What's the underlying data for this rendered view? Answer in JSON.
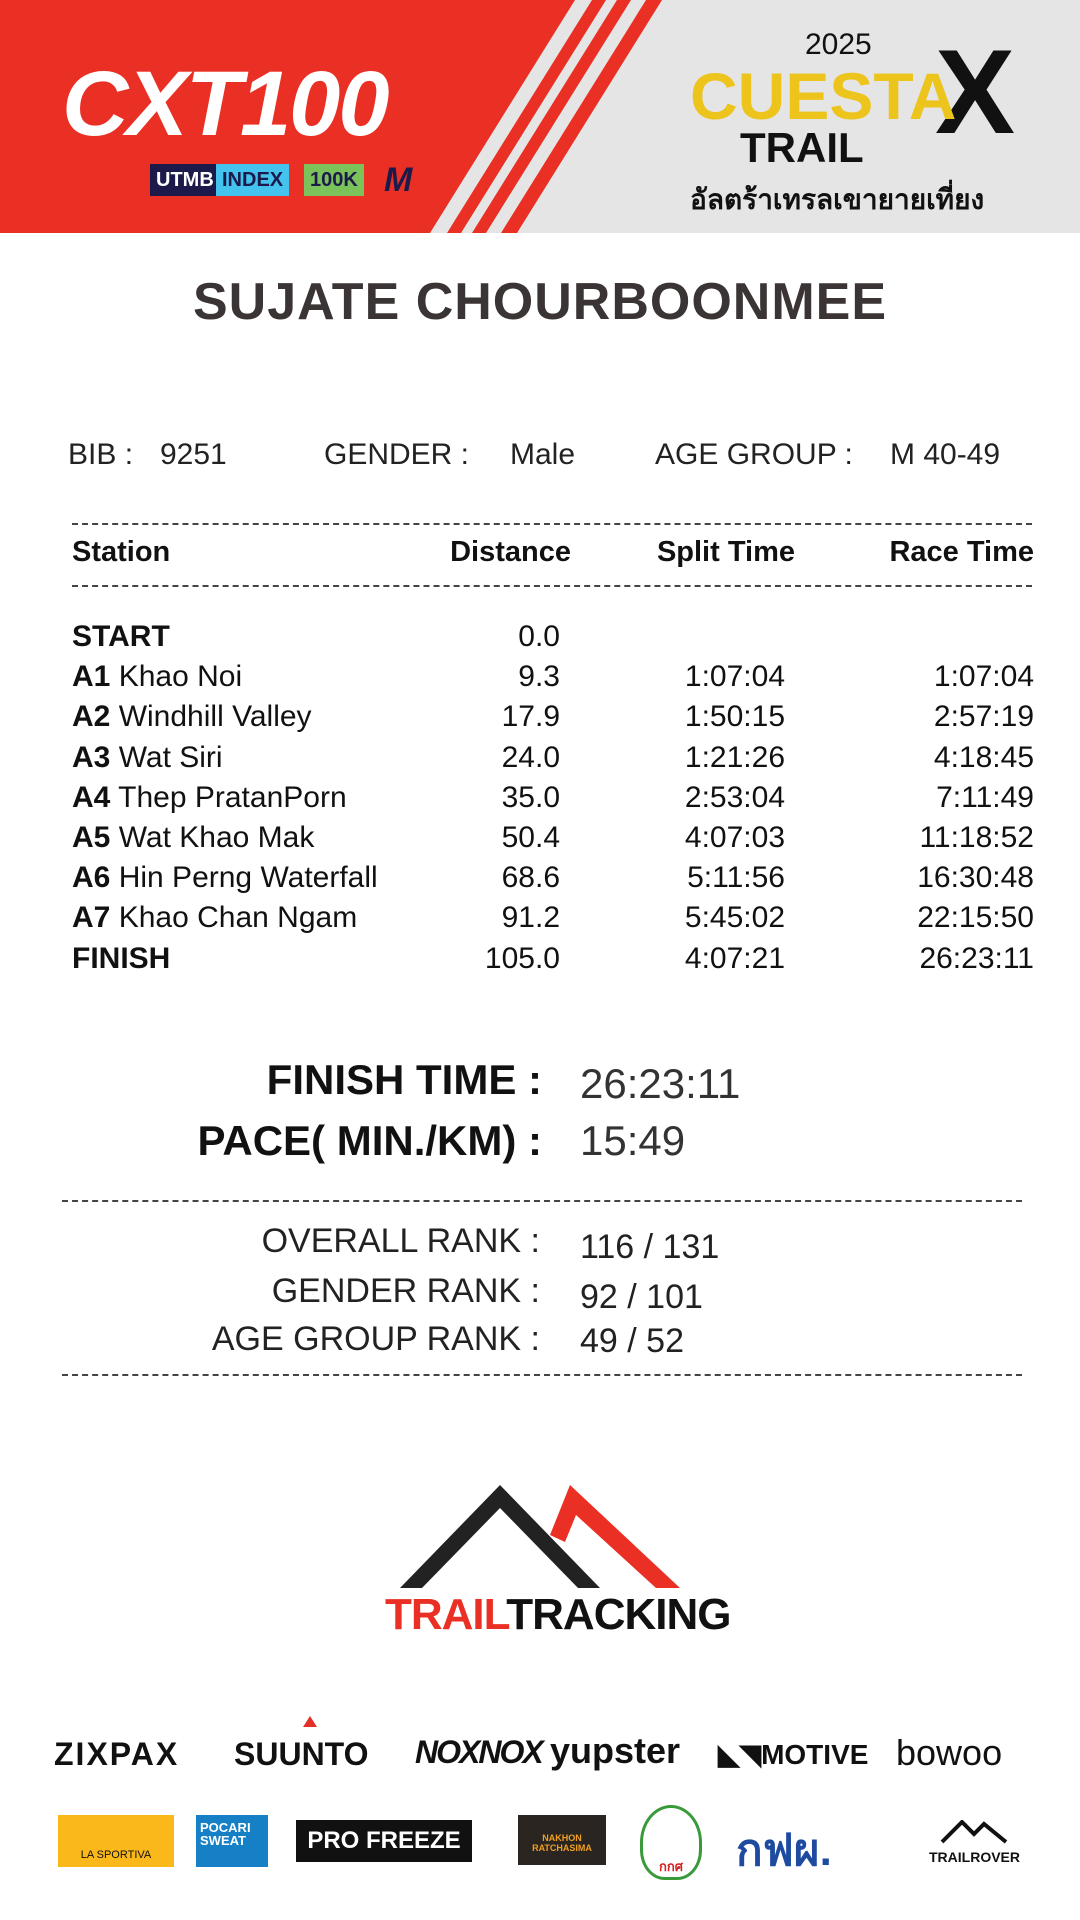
{
  "header": {
    "event_logo": "CXT100",
    "badges": [
      "UTMB",
      "INDEX",
      "100K",
      "M"
    ],
    "year": "2025",
    "brand": "CUESTA",
    "brand_sub": "TRAIL",
    "thai_title": "อัลตร้าเทรลเขายายเที่ยง"
  },
  "runner": {
    "name": "SUJATE CHOURBOONMEE",
    "bib_label": "BIB :",
    "bib": "9251",
    "gender_label": "GENDER  :",
    "gender": "Male",
    "age_group_label": "AGE GROUP  :",
    "age_group": "M 40-49"
  },
  "table": {
    "headers": [
      "Station",
      "Distance",
      "Split Time",
      "Race Time"
    ],
    "rows": [
      {
        "code": "START",
        "name": "",
        "distance": "0.0",
        "split": "",
        "race": ""
      },
      {
        "code": "A1",
        "name": "Khao Noi",
        "distance": "9.3",
        "split": "1:07:04",
        "race": "1:07:04"
      },
      {
        "code": "A2",
        "name": "Windhill Valley",
        "distance": "17.9",
        "split": "1:50:15",
        "race": "2:57:19"
      },
      {
        "code": "A3",
        "name": "Wat Siri",
        "distance": "24.0",
        "split": "1:21:26",
        "race": "4:18:45"
      },
      {
        "code": "A4",
        "name": "Thep PratanPorn",
        "distance": "35.0",
        "split": "2:53:04",
        "race": "7:11:49"
      },
      {
        "code": "A5",
        "name": "Wat Khao Mak",
        "distance": "50.4",
        "split": "4:07:03",
        "race": "11:18:52"
      },
      {
        "code": "A6",
        "name": "Hin Perng Waterfall",
        "distance": "68.6",
        "split": "5:11:56",
        "race": "16:30:48"
      },
      {
        "code": "A7",
        "name": "Khao Chan Ngam",
        "distance": "91.2",
        "split": "5:45:02",
        "race": "22:15:50"
      },
      {
        "code": "FINISH",
        "name": "",
        "distance": "105.0",
        "split": "4:07:21",
        "race": "26:23:11"
      }
    ]
  },
  "summary": {
    "finish_label": "FINISH TIME :",
    "finish": "26:23:11",
    "pace_label": "PACE( MIN./KM) :",
    "pace": "15:49"
  },
  "ranks": {
    "overall_label": "OVERALL RANK  :",
    "overall": "116 / 131",
    "gender_label": "GENDER RANK  :",
    "gender": "92 / 101",
    "age_label": "AGE GROUP RANK :",
    "age": "49 / 52"
  },
  "footer": {
    "logo_a": "TRAIL",
    "logo_b": "TRACKING",
    "sponsors_row1": [
      "ZIXPAX",
      "SUUNTO",
      "NOXNOX",
      "yupster",
      "MOTIVE",
      "bowoo"
    ],
    "sponsors_row2": [
      "LA SPORTIVA",
      "POCARI SWEAT",
      "PRO FREEZE",
      "NAKHON RATCHASIMA",
      "กกศ",
      "กฟผ.",
      "TRAILROVER"
    ]
  },
  "colors": {
    "red": "#ea3024",
    "yellow": "#ecc41c",
    "grey": "#e5e5e5"
  }
}
